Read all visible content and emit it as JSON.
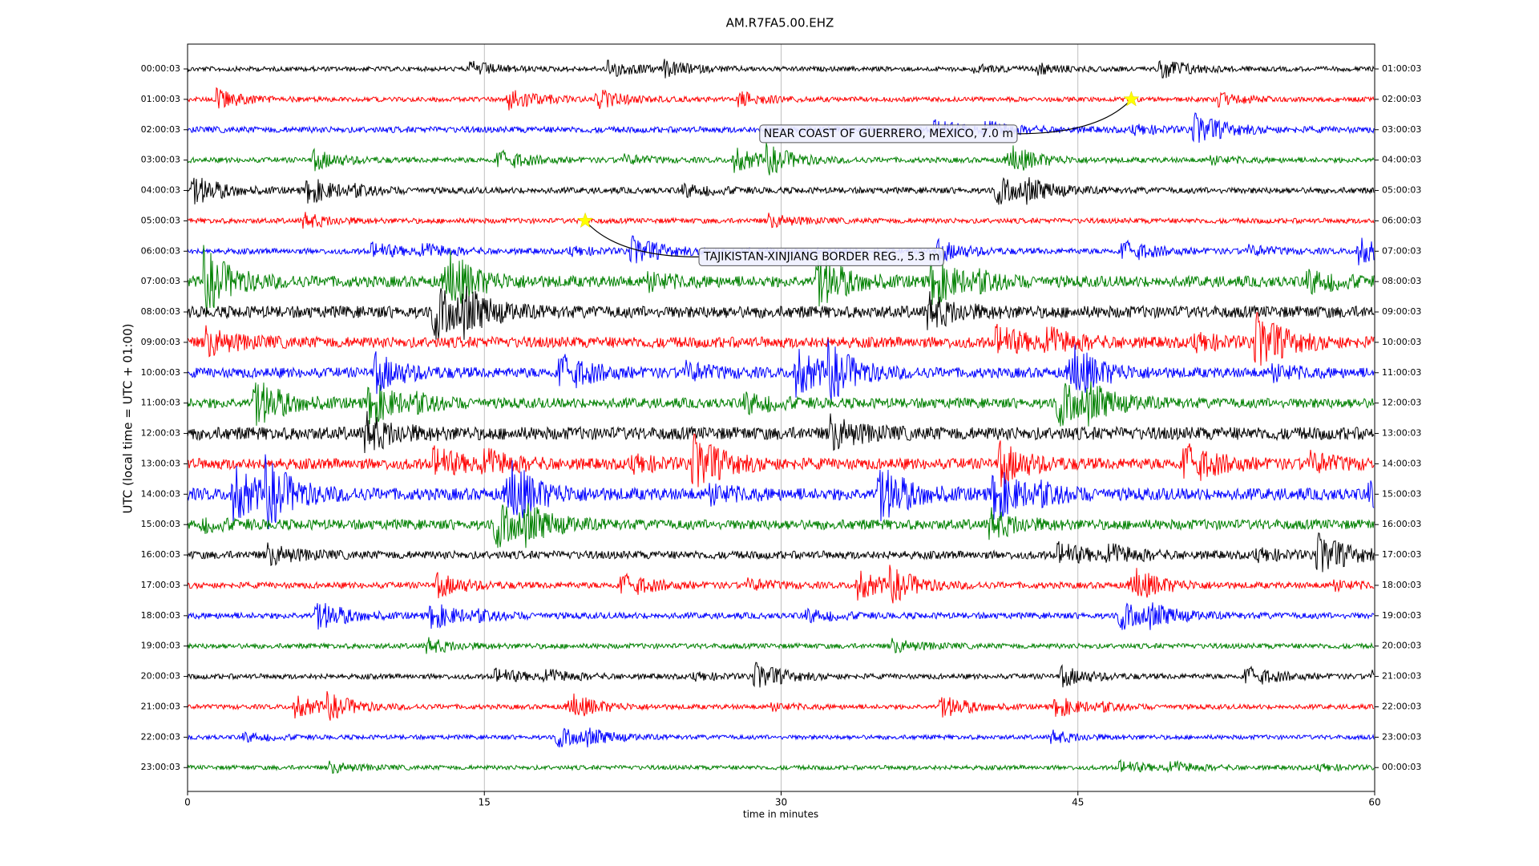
{
  "chart_data": {
    "type": "helicorder",
    "title": "AM.R7FA5.00.EHZ",
    "y_label": "UTC (local time = UTC + 01:00)",
    "x_label": "time in minutes",
    "xlim": [
      0,
      60
    ],
    "xticks": [
      0,
      15,
      30,
      45,
      60
    ],
    "grid": true,
    "colors": [
      "#000000",
      "#ff0000",
      "#0000ff",
      "#008000"
    ],
    "rows_left": [
      "00:00:03",
      "01:00:03",
      "02:00:03",
      "03:00:03",
      "04:00:03",
      "05:00:03",
      "06:00:03",
      "07:00:03",
      "08:00:03",
      "09:00:03",
      "10:00:03",
      "11:00:03",
      "12:00:03",
      "13:00:03",
      "14:00:03",
      "15:00:03",
      "16:00:03",
      "17:00:03",
      "18:00:03",
      "19:00:03",
      "20:00:03",
      "21:00:03",
      "22:00:03",
      "23:00:03"
    ],
    "rows_right": [
      "01:00:03",
      "02:00:03",
      "03:00:03",
      "04:00:03",
      "05:00:03",
      "06:00:03",
      "07:00:03",
      "08:00:03",
      "09:00:03",
      "10:00:03",
      "11:00:03",
      "12:00:03",
      "13:00:03",
      "14:00:03",
      "15:00:03",
      "16:00:03",
      "17:00:03",
      "18:00:03",
      "19:00:03",
      "20:00:03",
      "21:00:03",
      "22:00:03",
      "23:00:03",
      "00:00:03"
    ],
    "events": [
      {
        "label": "NEAR COAST OF GUERRERO, MEXICO, 7.0 m",
        "row": "01:00:03",
        "x": 47.7
      },
      {
        "label": "TAJIKISTAN-XINJIANG BORDER REG., 5.3 m",
        "row": "05:00:03",
        "x": 20.1
      }
    ]
  }
}
